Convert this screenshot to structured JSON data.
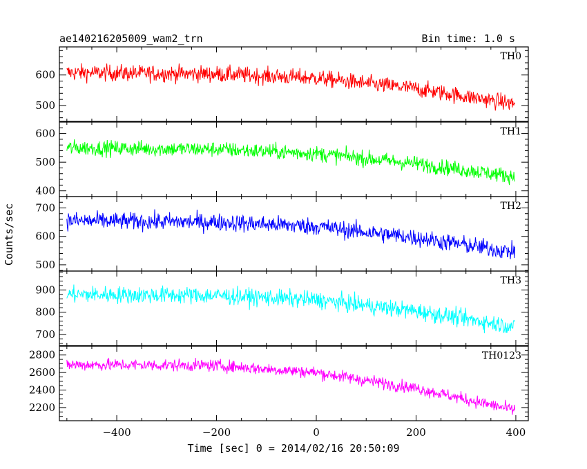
{
  "header": {
    "title": "ae140216205009_wam2_trn",
    "bin_time": "Bin time: 1.0 s"
  },
  "chart_data": {
    "type": "line",
    "title": "ae140216205009_wam2_trn",
    "xlabel": "Time [sec] 0 = 2014/02/16 20:50:09",
    "ylabel": "Counts/sec",
    "xlim": [
      -515,
      425
    ],
    "x_ticks": [
      -400,
      -200,
      0,
      200,
      400
    ],
    "x_range": [
      -500,
      398
    ],
    "bin_time_s": 1.0,
    "grid": false,
    "panels": [
      {
        "name": "TH0",
        "color": "#ff0000",
        "ylim": [
          448,
          692
        ],
        "y_ticks": [
          500,
          600
        ],
        "trend": [
          {
            "x": -500,
            "y": 608
          },
          {
            "x": -200,
            "y": 603
          },
          {
            "x": 0,
            "y": 590
          },
          {
            "x": 200,
            "y": 555
          },
          {
            "x": 398,
            "y": 505
          }
        ],
        "noise_amplitude": 35
      },
      {
        "name": "TH1",
        "color": "#00ff00",
        "ylim": [
          380,
          640
        ],
        "y_ticks": [
          400,
          500,
          600
        ],
        "trend": [
          {
            "x": -500,
            "y": 550
          },
          {
            "x": -200,
            "y": 545
          },
          {
            "x": 0,
            "y": 530
          },
          {
            "x": 200,
            "y": 495
          },
          {
            "x": 398,
            "y": 450
          }
        ],
        "noise_amplitude": 35
      },
      {
        "name": "TH2",
        "color": "#0000ff",
        "ylim": [
          478,
          740
        ],
        "y_ticks": [
          500,
          600,
          700
        ],
        "trend": [
          {
            "x": -500,
            "y": 655
          },
          {
            "x": -200,
            "y": 650
          },
          {
            "x": 0,
            "y": 635
          },
          {
            "x": 200,
            "y": 595
          },
          {
            "x": 398,
            "y": 545
          }
        ],
        "noise_amplitude": 40
      },
      {
        "name": "TH3",
        "color": "#00ffff",
        "ylim": [
          650,
          985
        ],
        "y_ticks": [
          700,
          800,
          900
        ],
        "trend": [
          {
            "x": -500,
            "y": 880
          },
          {
            "x": -200,
            "y": 875
          },
          {
            "x": 0,
            "y": 855
          },
          {
            "x": 200,
            "y": 805
          },
          {
            "x": 398,
            "y": 735
          }
        ],
        "noise_amplitude": 50
      },
      {
        "name": "TH0123",
        "color": "#ff00ff",
        "ylim": [
          2050,
          2900
        ],
        "y_ticks": [
          2200,
          2400,
          2600,
          2800
        ],
        "trend": [
          {
            "x": -500,
            "y": 2690
          },
          {
            "x": -200,
            "y": 2680
          },
          {
            "x": 0,
            "y": 2600
          },
          {
            "x": 200,
            "y": 2420
          },
          {
            "x": 398,
            "y": 2170
          }
        ],
        "noise_amplitude": 90
      }
    ]
  }
}
